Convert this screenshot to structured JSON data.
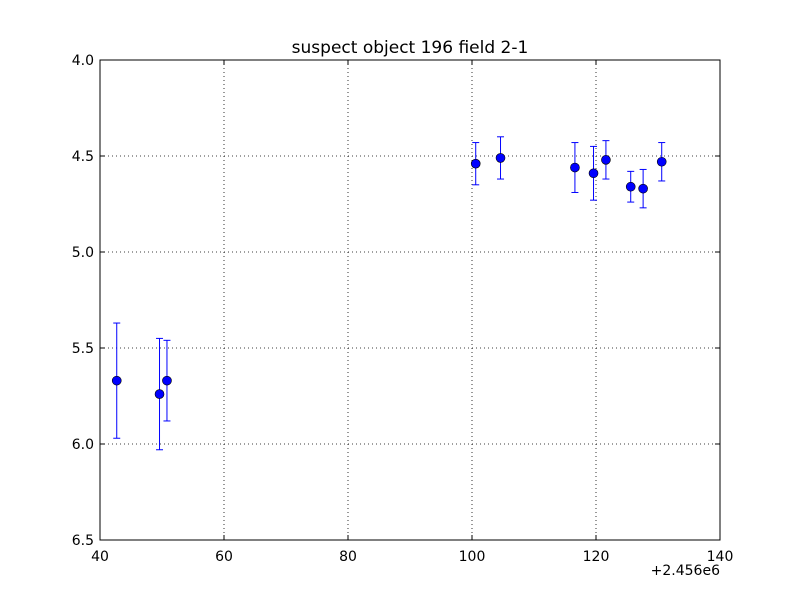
{
  "chart_data": {
    "type": "scatter",
    "title": "suspect object 196 field 2-1",
    "xlabel": "",
    "ylabel": "",
    "x_offset_label": "+2.456e6",
    "xlim": [
      40,
      140
    ],
    "ylim": [
      6.5,
      4.0
    ],
    "y_inverted": true,
    "grid": true,
    "xticks": [
      "40",
      "60",
      "80",
      "100",
      "120",
      "140"
    ],
    "yticks": [
      "4.0",
      "4.5",
      "5.0",
      "5.5",
      "6.0",
      "6.5"
    ],
    "marker_color": "#0000ff",
    "series": [
      {
        "x": [
          2456042.7,
          2456049.6,
          2456050.8,
          2456100.6,
          2456104.6,
          2456116.6,
          2456119.6,
          2456121.6,
          2456125.6,
          2456127.6,
          2456130.6
        ],
        "y": [
          5.67,
          5.74,
          5.67,
          4.54,
          4.51,
          4.56,
          4.59,
          4.52,
          4.66,
          4.67,
          4.53
        ],
        "yerr": [
          0.3,
          0.29,
          0.21,
          0.11,
          0.11,
          0.13,
          0.14,
          0.1,
          0.08,
          0.1,
          0.1
        ]
      }
    ]
  }
}
